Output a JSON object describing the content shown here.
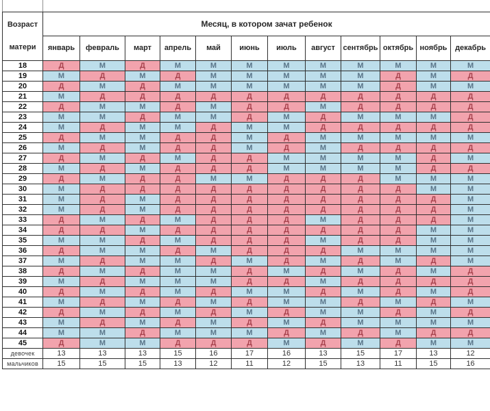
{
  "chart_data": {
    "type": "table",
    "title": "Месяц, в котором зачат ребенок",
    "corner_label_top": "Возраст",
    "corner_label_bottom": "матери",
    "columns": [
      "январь",
      "февраль",
      "март",
      "апрель",
      "май",
      "июнь",
      "июль",
      "август",
      "сентябрь",
      "октябрь",
      "ноябрь",
      "декабрь"
    ],
    "girl_symbol": "Д",
    "boy_symbol": "М",
    "colors": {
      "girl_bg": "#f2a3ad",
      "boy_bg": "#bddeeb",
      "girl_text": "#a8434e",
      "boy_text": "#5a7589"
    },
    "rows": [
      {
        "age": "18",
        "values": [
          "Д",
          "М",
          "Д",
          "М",
          "М",
          "М",
          "М",
          "М",
          "М",
          "М",
          "М",
          "М"
        ]
      },
      {
        "age": "19",
        "values": [
          "М",
          "Д",
          "М",
          "Д",
          "М",
          "М",
          "М",
          "М",
          "М",
          "Д",
          "М",
          "Д"
        ]
      },
      {
        "age": "20",
        "values": [
          "Д",
          "М",
          "Д",
          "М",
          "М",
          "М",
          "М",
          "М",
          "М",
          "Д",
          "М",
          "М"
        ]
      },
      {
        "age": "21",
        "values": [
          "М",
          "Д",
          "Д",
          "Д",
          "Д",
          "Д",
          "Д",
          "Д",
          "Д",
          "Д",
          "Д",
          "Д"
        ]
      },
      {
        "age": "22",
        "values": [
          "Д",
          "М",
          "М",
          "Д",
          "М",
          "Д",
          "Д",
          "М",
          "Д",
          "Д",
          "Д",
          "Д"
        ]
      },
      {
        "age": "23",
        "values": [
          "М",
          "М",
          "Д",
          "М",
          "М",
          "Д",
          "М",
          "Д",
          "М",
          "М",
          "М",
          "Д"
        ]
      },
      {
        "age": "24",
        "values": [
          "М",
          "Д",
          "М",
          "М",
          "Д",
          "М",
          "М",
          "Д",
          "Д",
          "Д",
          "Д",
          "Д"
        ]
      },
      {
        "age": "25",
        "values": [
          "Д",
          "М",
          "М",
          "Д",
          "Д",
          "М",
          "Д",
          "М",
          "М",
          "М",
          "М",
          "М"
        ]
      },
      {
        "age": "26",
        "values": [
          "М",
          "Д",
          "М",
          "Д",
          "Д",
          "М",
          "Д",
          "М",
          "Д",
          "Д",
          "Д",
          "Д"
        ]
      },
      {
        "age": "27",
        "values": [
          "Д",
          "М",
          "Д",
          "М",
          "Д",
          "Д",
          "М",
          "М",
          "М",
          "М",
          "Д",
          "М"
        ]
      },
      {
        "age": "28",
        "values": [
          "М",
          "Д",
          "М",
          "Д",
          "Д",
          "Д",
          "М",
          "М",
          "М",
          "М",
          "Д",
          "Д"
        ]
      },
      {
        "age": "29",
        "values": [
          "Д",
          "М",
          "Д",
          "Д",
          "М",
          "М",
          "Д",
          "Д",
          "Д",
          "М",
          "М",
          "М"
        ]
      },
      {
        "age": "30",
        "values": [
          "М",
          "Д",
          "Д",
          "Д",
          "Д",
          "Д",
          "Д",
          "Д",
          "Д",
          "Д",
          "М",
          "М"
        ]
      },
      {
        "age": "31",
        "values": [
          "М",
          "Д",
          "М",
          "Д",
          "Д",
          "Д",
          "Д",
          "Д",
          "Д",
          "Д",
          "Д",
          "М"
        ]
      },
      {
        "age": "32",
        "values": [
          "М",
          "Д",
          "М",
          "Д",
          "Д",
          "Д",
          "Д",
          "Д",
          "Д",
          "Д",
          "Д",
          "М"
        ]
      },
      {
        "age": "33",
        "values": [
          "Д",
          "М",
          "Д",
          "М",
          "Д",
          "Д",
          "Д",
          "М",
          "Д",
          "Д",
          "Д",
          "М"
        ]
      },
      {
        "age": "34",
        "values": [
          "Д",
          "Д",
          "М",
          "Д",
          "Д",
          "Д",
          "Д",
          "Д",
          "Д",
          "Д",
          "М",
          "М"
        ]
      },
      {
        "age": "35",
        "values": [
          "М",
          "М",
          "Д",
          "М",
          "Д",
          "Д",
          "Д",
          "М",
          "Д",
          "Д",
          "М",
          "М"
        ]
      },
      {
        "age": "36",
        "values": [
          "Д",
          "М",
          "М",
          "Д",
          "М",
          "Д",
          "Д",
          "Д",
          "М",
          "М",
          "М",
          "М"
        ]
      },
      {
        "age": "37",
        "values": [
          "М",
          "Д",
          "М",
          "М",
          "Д",
          "М",
          "Д",
          "М",
          "Д",
          "М",
          "Д",
          "М"
        ]
      },
      {
        "age": "38",
        "values": [
          "Д",
          "М",
          "Д",
          "М",
          "М",
          "Д",
          "М",
          "Д",
          "М",
          "Д",
          "М",
          "Д"
        ]
      },
      {
        "age": "39",
        "values": [
          "М",
          "Д",
          "М",
          "М",
          "М",
          "Д",
          "Д",
          "М",
          "Д",
          "Д",
          "Д",
          "Д"
        ]
      },
      {
        "age": "40",
        "values": [
          "Д",
          "М",
          "Д",
          "М",
          "Д",
          "М",
          "М",
          "Д",
          "М",
          "Д",
          "М",
          "Д"
        ]
      },
      {
        "age": "41",
        "values": [
          "М",
          "Д",
          "М",
          "Д",
          "М",
          "Д",
          "М",
          "М",
          "Д",
          "М",
          "Д",
          "М"
        ]
      },
      {
        "age": "42",
        "values": [
          "Д",
          "М",
          "Д",
          "М",
          "Д",
          "М",
          "Д",
          "М",
          "М",
          "Д",
          "М",
          "Д"
        ]
      },
      {
        "age": "43",
        "values": [
          "М",
          "Д",
          "М",
          "Д",
          "М",
          "Д",
          "М",
          "Д",
          "М",
          "М",
          "М",
          "М"
        ]
      },
      {
        "age": "44",
        "values": [
          "М",
          "М",
          "Д",
          "М",
          "М",
          "М",
          "Д",
          "М",
          "Д",
          "М",
          "Д",
          "Д"
        ]
      },
      {
        "age": "45",
        "values": [
          "Д",
          "М",
          "М",
          "Д",
          "Д",
          "Д",
          "М",
          "Д",
          "М",
          "Д",
          "М",
          "М"
        ]
      }
    ],
    "summary_rows": [
      {
        "label": "девочек",
        "values": [
          "13",
          "13",
          "13",
          "15",
          "16",
          "17",
          "16",
          "13",
          "15",
          "17",
          "13",
          "12"
        ]
      },
      {
        "label": "мальчиков",
        "values": [
          "15",
          "15",
          "15",
          "13",
          "12",
          "11",
          "12",
          "15",
          "13",
          "11",
          "15",
          "16"
        ]
      }
    ]
  }
}
